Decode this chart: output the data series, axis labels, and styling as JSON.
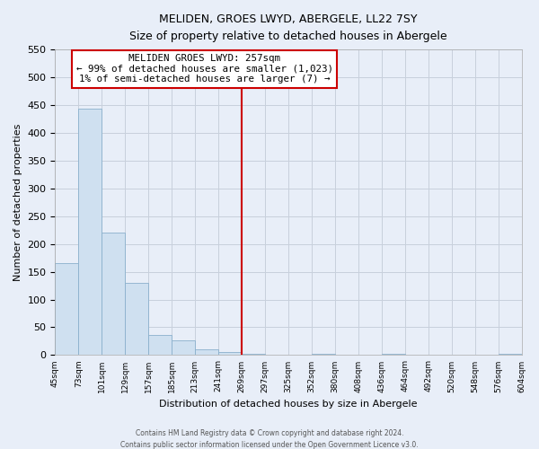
{
  "title": "MELIDEN, GROES LWYD, ABERGELE, LL22 7SY",
  "subtitle": "Size of property relative to detached houses in Abergele",
  "xlabel": "Distribution of detached houses by size in Abergele",
  "ylabel": "Number of detached properties",
  "bar_color": "#cfe0f0",
  "bar_edge_color": "#8ab0cc",
  "bin_labels": [
    "45sqm",
    "73sqm",
    "101sqm",
    "129sqm",
    "157sqm",
    "185sqm",
    "213sqm",
    "241sqm",
    "269sqm",
    "297sqm",
    "325sqm",
    "352sqm",
    "380sqm",
    "408sqm",
    "436sqm",
    "464sqm",
    "492sqm",
    "520sqm",
    "548sqm",
    "576sqm",
    "604sqm"
  ],
  "bar_values": [
    165,
    443,
    221,
    130,
    37,
    26,
    10,
    5,
    3,
    0,
    0,
    3,
    0,
    0,
    3,
    0,
    0,
    0,
    0,
    3
  ],
  "ylim": [
    0,
    550
  ],
  "yticks": [
    0,
    50,
    100,
    150,
    200,
    250,
    300,
    350,
    400,
    450,
    500,
    550
  ],
  "vline_position": 8.0,
  "vline_color": "#cc0000",
  "annotation_title": "MELIDEN GROES LWYD: 257sqm",
  "annotation_line1": "← 99% of detached houses are smaller (1,023)",
  "annotation_line2": "1% of semi-detached houses are larger (7) →",
  "footer1": "Contains HM Land Registry data © Crown copyright and database right 2024.",
  "footer2": "Contains public sector information licensed under the Open Government Licence v3.0.",
  "grid_color": "#c8d0dc",
  "background_color": "#e8eef8"
}
